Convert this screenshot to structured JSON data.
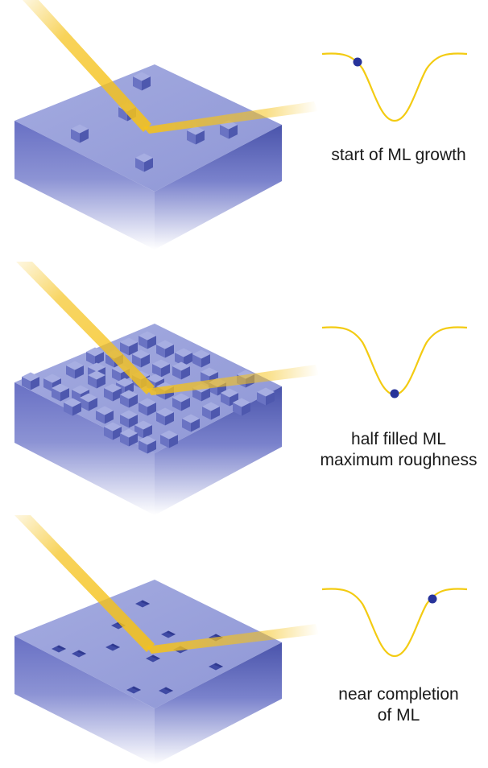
{
  "colors": {
    "top_face": "#9aa2da",
    "front_face": "#6b74c6",
    "side_face": "#4c56ad",
    "beam": "#f5c21a",
    "curve": "#f3cb12",
    "marker": "#27339a",
    "text": "#1a1a1a"
  },
  "panels": [
    {
      "id": "start",
      "caption_lines": [
        "start of ML growth"
      ],
      "state": "few-islands",
      "marker_position": "left shoulder of curve"
    },
    {
      "id": "half",
      "caption_lines": [
        "half filled ML",
        "maximum roughness"
      ],
      "state": "rough-surface",
      "marker_position": "bottom of curve"
    },
    {
      "id": "near",
      "caption_lines": [
        "near completion",
        "of ML"
      ],
      "state": "few-vacancies",
      "marker_position": "right shoulder of curve"
    }
  ]
}
